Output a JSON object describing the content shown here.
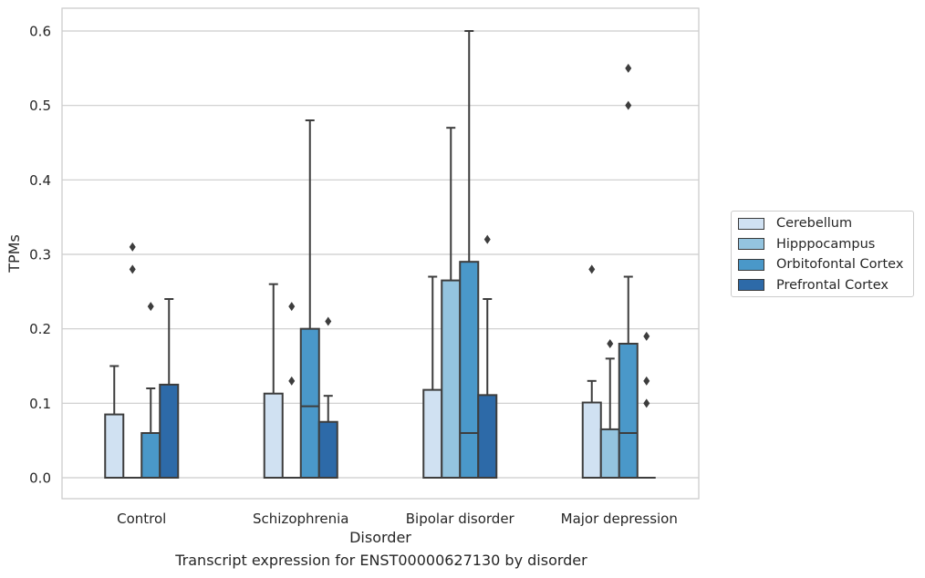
{
  "chart_data": {
    "type": "box",
    "title": "",
    "xlabel": "Disorder",
    "ylabel": "TPMs",
    "caption": "Transcript expression for ENST00000627130 by disorder",
    "ylim": [
      -0.03,
      0.63
    ],
    "yticks": [
      0.0,
      0.1,
      0.2,
      0.3,
      0.4,
      0.5,
      0.6
    ],
    "ytick_labels": [
      "0.0",
      "0.1",
      "0.2",
      "0.3",
      "0.4",
      "0.5",
      "0.6"
    ],
    "grid": true,
    "legend_position": "right",
    "categories": [
      "Control",
      "Schizophrenia",
      "Bipolar disorder",
      "Major depression"
    ],
    "series": [
      {
        "name": "Cerebellum",
        "color": "#d0e1f2",
        "boxes": [
          {
            "min": 0.0,
            "q1": 0.0,
            "median": 0.0,
            "q3": 0.085,
            "max": 0.15,
            "outliers": []
          },
          {
            "min": 0.0,
            "q1": 0.0,
            "median": 0.0,
            "q3": 0.113,
            "max": 0.26,
            "outliers": []
          },
          {
            "min": 0.0,
            "q1": 0.0,
            "median": 0.0,
            "q3": 0.118,
            "max": 0.27,
            "outliers": []
          },
          {
            "min": 0.0,
            "q1": 0.0,
            "median": 0.0,
            "q3": 0.101,
            "max": 0.13,
            "outliers": [
              0.28
            ]
          }
        ]
      },
      {
        "name": "Hipppocampus",
        "color": "#94c4df",
        "boxes": [
          {
            "min": 0.0,
            "q1": 0.0,
            "median": 0.0,
            "q3": 0.0,
            "max": 0.0,
            "outliers": [
              0.28,
              0.31
            ]
          },
          {
            "min": 0.0,
            "q1": 0.0,
            "median": 0.0,
            "q3": 0.0,
            "max": 0.0,
            "outliers": [
              0.13,
              0.23
            ]
          },
          {
            "min": 0.0,
            "q1": 0.0,
            "median": 0.0,
            "q3": 0.265,
            "max": 0.47,
            "outliers": []
          },
          {
            "min": 0.0,
            "q1": 0.0,
            "median": 0.0,
            "q3": 0.065,
            "max": 0.16,
            "outliers": [
              0.18
            ]
          }
        ]
      },
      {
        "name": "Orbitofontal Cortex",
        "color": "#4a98c9",
        "boxes": [
          {
            "min": 0.0,
            "q1": 0.0,
            "median": 0.0,
            "q3": 0.06,
            "max": 0.12,
            "outliers": [
              0.23
            ]
          },
          {
            "min": 0.0,
            "q1": 0.0,
            "median": 0.096,
            "q3": 0.2,
            "max": 0.48,
            "outliers": []
          },
          {
            "min": 0.0,
            "q1": 0.0,
            "median": 0.06,
            "q3": 0.29,
            "max": 0.6,
            "outliers": []
          },
          {
            "min": 0.0,
            "q1": 0.0,
            "median": 0.06,
            "q3": 0.18,
            "max": 0.27,
            "outliers": [
              0.5,
              0.55
            ]
          }
        ]
      },
      {
        "name": "Prefrontal Cortex",
        "color": "#2d6aa8",
        "boxes": [
          {
            "min": 0.0,
            "q1": 0.0,
            "median": 0.0,
            "q3": 0.125,
            "max": 0.24,
            "outliers": []
          },
          {
            "min": 0.0,
            "q1": 0.0,
            "median": 0.0,
            "q3": 0.075,
            "max": 0.11,
            "outliers": [
              0.21
            ]
          },
          {
            "min": 0.0,
            "q1": 0.0,
            "median": 0.0,
            "q3": 0.111,
            "max": 0.24,
            "outliers": [
              0.32
            ]
          },
          {
            "min": 0.0,
            "q1": 0.0,
            "median": 0.0,
            "q3": 0.0,
            "max": 0.0,
            "outliers": [
              0.1,
              0.13,
              0.19
            ]
          }
        ]
      }
    ]
  }
}
